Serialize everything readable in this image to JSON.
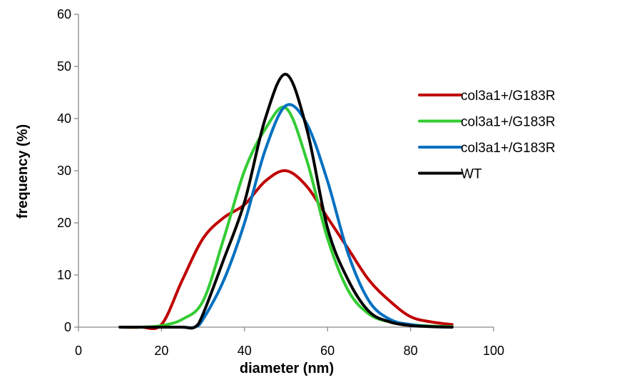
{
  "chart_data": {
    "type": "line",
    "title": "",
    "xlabel": "diameter (nm)",
    "ylabel": "frequency (%)",
    "xlim": [
      0,
      100
    ],
    "ylim": [
      0,
      60
    ],
    "xticks": [
      0,
      20,
      40,
      60,
      80,
      100
    ],
    "yticks": [
      0,
      10,
      20,
      30,
      40,
      50,
      60
    ],
    "grid": false,
    "smooth": true,
    "legend_position": "right",
    "series": [
      {
        "name": "col3a1+/G183R",
        "color": "#c00000",
        "x": [
          10,
          15,
          20,
          25,
          30,
          35,
          40,
          45,
          50,
          55,
          60,
          65,
          70,
          75,
          80,
          85,
          90
        ],
        "values": [
          0,
          0,
          0.5,
          9,
          17,
          21,
          23.5,
          28,
          30,
          27,
          21,
          15,
          9,
          5,
          2,
          1,
          0.5
        ]
      },
      {
        "name": "col3a1+/G183R",
        "color": "#33cc33",
        "x": [
          10,
          15,
          20,
          25,
          30,
          35,
          40,
          45,
          50,
          55,
          60,
          65,
          70,
          75,
          80,
          85,
          90
        ],
        "values": [
          0,
          0,
          0.3,
          1.5,
          5,
          17,
          30,
          38,
          42,
          32,
          17,
          7,
          2.5,
          1,
          0.5,
          0.2,
          0.1
        ]
      },
      {
        "name": "col3a1+/G183R",
        "color": "#0070c0",
        "x": [
          10,
          15,
          20,
          25,
          28,
          30,
          35,
          40,
          45,
          50,
          55,
          60,
          65,
          70,
          75,
          80,
          85,
          90
        ],
        "values": [
          0,
          0,
          0,
          0,
          0,
          1.5,
          9,
          20,
          34,
          42.5,
          39,
          28,
          14,
          5,
          1.5,
          0.5,
          0.1,
          0
        ]
      },
      {
        "name": "WT",
        "color": "#000000",
        "x": [
          10,
          15,
          20,
          25,
          28,
          30,
          35,
          40,
          45,
          50,
          55,
          60,
          65,
          70,
          75,
          80,
          85,
          90
        ],
        "values": [
          0,
          0,
          0,
          0,
          0,
          2.5,
          13,
          24,
          40,
          48.5,
          38,
          19,
          9,
          3,
          1,
          0.3,
          0.1,
          0
        ]
      }
    ]
  }
}
